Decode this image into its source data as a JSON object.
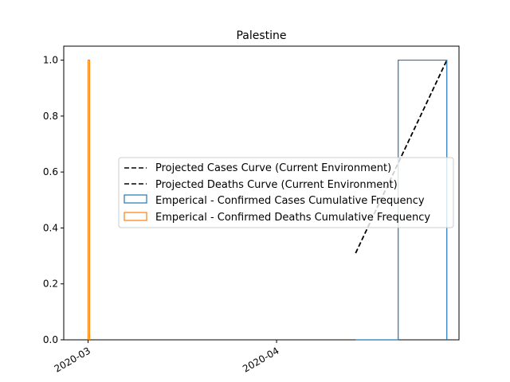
{
  "chart_data": {
    "type": "histogram-step",
    "title": "Palestine",
    "xlabel": "",
    "ylabel": "",
    "x_axis_type": "date",
    "xlim": [
      "2020-02-26",
      "2020-05-01"
    ],
    "ylim": [
      0.0,
      1.05
    ],
    "x_ticks": [
      "2020-03-01",
      "2020-04-01"
    ],
    "x_tick_labels": [
      "2020-03",
      "2020-04"
    ],
    "y_ticks": [
      0.0,
      0.2,
      0.4,
      0.6,
      0.8,
      1.0
    ],
    "y_tick_labels": [
      "0.0",
      "0.2",
      "0.4",
      "0.6",
      "0.8",
      "1.0"
    ],
    "grid": false,
    "legend_position": "center-right",
    "series": [
      {
        "name": "Projected Cases Curve (Current Environment)",
        "kind": "line",
        "style": "dashed",
        "color": "#000000",
        "x": [
          "2020-04-14",
          "2020-04-29"
        ],
        "y": [
          0.31,
          1.0
        ]
      },
      {
        "name": "Projected Deaths Curve (Current Environment)",
        "kind": "line",
        "style": "dashed",
        "color": "#000000",
        "x": [],
        "y": []
      },
      {
        "name": "Emperical - Confirmed Cases Cumulative Frequency",
        "kind": "step",
        "color": "#1f77b4",
        "bins": [
          "2020-04-14",
          "2020-04-21",
          "2020-04-29"
        ],
        "values": [
          0.0,
          1.0
        ]
      },
      {
        "name": "Emperical - Confirmed Deaths Cumulative Frequency",
        "kind": "step",
        "color": "#ff7f0e",
        "bins": [
          "2020-03-01",
          "2020-03-01.25"
        ],
        "values": [
          1.0
        ]
      }
    ]
  }
}
